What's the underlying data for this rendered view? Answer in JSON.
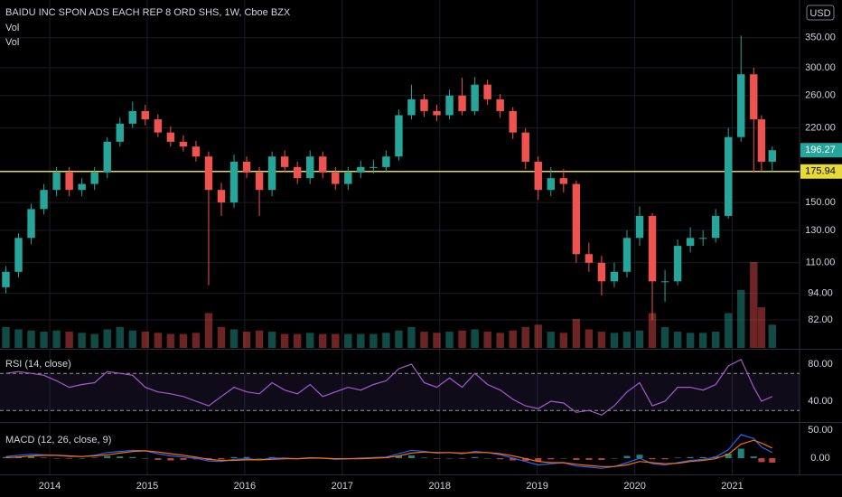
{
  "chart_data": [
    {
      "type": "candlestick",
      "title": "BAIDU INC SPON ADS EACH REP 8 ORD SHS, 1W, Cboe BZX",
      "indicators": [
        "Vol",
        "Vol"
      ],
      "currency": "USD",
      "log": true,
      "grid": true,
      "x": [
        2013.55,
        2013.68,
        2013.81,
        2013.94,
        2014.07,
        2014.2,
        2014.33,
        2014.46,
        2014.59,
        2014.72,
        2014.85,
        2014.98,
        2015.11,
        2015.24,
        2015.37,
        2015.5,
        2015.63,
        2015.76,
        2015.89,
        2016.02,
        2016.15,
        2016.28,
        2016.41,
        2016.54,
        2016.67,
        2016.8,
        2016.93,
        2017.06,
        2017.19,
        2017.32,
        2017.45,
        2017.58,
        2017.71,
        2017.84,
        2017.97,
        2018.1,
        2018.23,
        2018.36,
        2018.49,
        2018.62,
        2018.75,
        2018.88,
        2019.01,
        2019.14,
        2019.27,
        2019.4,
        2019.53,
        2019.66,
        2019.79,
        2019.92,
        2020.05,
        2020.18,
        2020.31,
        2020.44,
        2020.57,
        2020.7,
        2020.83,
        2020.96,
        2021.09,
        2021.22,
        2021.3,
        2021.41
      ],
      "open": [
        97,
        105,
        125,
        145,
        160,
        175,
        160,
        165,
        175,
        205,
        225,
        240,
        230,
        215,
        205,
        200,
        190,
        160,
        150,
        185,
        175,
        160,
        190,
        180,
        170,
        190,
        175,
        165,
        175,
        180,
        180,
        190,
        235,
        255,
        240,
        235,
        260,
        240,
        275,
        255,
        240,
        215,
        185,
        160,
        170,
        165,
        115,
        110,
        100,
        105,
        125,
        140,
        100,
        100,
        120,
        125,
        125,
        140,
        210,
        290,
        230,
        185
      ],
      "high": [
        108,
        128,
        149,
        165,
        180,
        180,
        170,
        180,
        210,
        232,
        252,
        248,
        236,
        222,
        212,
        206,
        195,
        166,
        192,
        190,
        180,
        195,
        196,
        185,
        196,
        195,
        180,
        180,
        186,
        187,
        196,
        242,
        275,
        262,
        248,
        268,
        285,
        286,
        282,
        262,
        245,
        220,
        190,
        180,
        178,
        168,
        122,
        114,
        110,
        130,
        147,
        142,
        106,
        124,
        132,
        130,
        145,
        220,
        354,
        300,
        235,
        200
      ],
      "low": [
        94,
        102,
        121,
        141,
        155,
        155,
        155,
        160,
        170,
        200,
        220,
        223,
        210,
        200,
        195,
        185,
        98,
        140,
        146,
        170,
        140,
        155,
        175,
        165,
        165,
        170,
        160,
        160,
        170,
        174,
        175,
        186,
        230,
        233,
        228,
        230,
        235,
        235,
        248,
        232,
        208,
        178,
        152,
        155,
        158,
        110,
        105,
        93,
        97,
        102,
        120,
        82,
        90,
        98,
        116,
        120,
        122,
        138,
        205,
        175,
        176,
        176
      ],
      "close": [
        105,
        125,
        145,
        160,
        175,
        160,
        165,
        175,
        205,
        225,
        240,
        230,
        215,
        205,
        200,
        190,
        160,
        150,
        185,
        175,
        160,
        190,
        180,
        170,
        190,
        175,
        165,
        175,
        180,
        180,
        190,
        235,
        255,
        240,
        235,
        260,
        240,
        275,
        255,
        240,
        215,
        185,
        160,
        170,
        165,
        115,
        110,
        100,
        105,
        125,
        140,
        100,
        100,
        120,
        125,
        125,
        140,
        210,
        290,
        230,
        185,
        196.27
      ],
      "volume": [
        18,
        16,
        15,
        14,
        15,
        14,
        13,
        12,
        16,
        18,
        15,
        14,
        13,
        12,
        12,
        13,
        30,
        18,
        16,
        14,
        15,
        14,
        12,
        12,
        13,
        12,
        12,
        12,
        12,
        12,
        13,
        15,
        18,
        14,
        13,
        14,
        15,
        16,
        14,
        13,
        15,
        18,
        20,
        14,
        13,
        25,
        16,
        14,
        13,
        14,
        15,
        30,
        18,
        14,
        13,
        13,
        14,
        30,
        50,
        74,
        35,
        20
      ],
      "volume_lim": [
        0,
        300
      ],
      "up_color": "#26a69a",
      "down_color": "#ef5350",
      "xlim": [
        2013.49,
        2021.69
      ],
      "xticks": [
        2014,
        2015,
        2016,
        2017,
        2018,
        2019,
        2020,
        2021
      ],
      "ylim": [
        71,
        425
      ],
      "yticks": [
        {
          "value": 82,
          "label": "82.00"
        },
        {
          "value": 94,
          "label": "94.00"
        },
        {
          "value": 110,
          "label": "110.00"
        },
        {
          "value": 130,
          "label": "130.00"
        },
        {
          "value": 150,
          "label": "150.00"
        },
        {
          "value": 220,
          "label": "220.00"
        },
        {
          "value": 260,
          "label": "260.00"
        },
        {
          "value": 300,
          "label": "300.00"
        },
        {
          "value": 350,
          "label": "350.00"
        }
      ],
      "hline": 175.94,
      "hline_color": "#e6d93a"
    },
    {
      "type": "line",
      "title": "RSI (14, close)",
      "color": "#a35bd0",
      "values": [
        70,
        72,
        70,
        68,
        62,
        55,
        58,
        60,
        72,
        70,
        68,
        55,
        50,
        48,
        45,
        40,
        35,
        45,
        55,
        50,
        48,
        60,
        52,
        48,
        58,
        45,
        50,
        55,
        52,
        58,
        62,
        75,
        80,
        60,
        55,
        65,
        55,
        70,
        58,
        52,
        42,
        35,
        32,
        40,
        38,
        28,
        30,
        25,
        35,
        50,
        60,
        35,
        40,
        55,
        55,
        52,
        58,
        78,
        85,
        55,
        40,
        45
      ],
      "ylim": [
        18.5,
        94.6
      ],
      "yticks": [
        {
          "value": 40,
          "label": "40.00"
        },
        {
          "value": 80,
          "label": "80.00"
        }
      ],
      "bands": [
        30,
        70
      ]
    },
    {
      "type": "macd",
      "title": "MACD (12, 26, close, 9)",
      "macd_color": "#2962ff",
      "signal_color": "#ff6d00",
      "macd": [
        3,
        5,
        7,
        6,
        5,
        3,
        3,
        5,
        10,
        12,
        14,
        13,
        8,
        4,
        2,
        0,
        -5,
        -6,
        -2,
        -1,
        -3,
        0,
        0,
        -1,
        1,
        0,
        -2,
        -1,
        0,
        1,
        2,
        8,
        14,
        12,
        9,
        10,
        8,
        12,
        10,
        6,
        0,
        -6,
        -12,
        -10,
        -8,
        -14,
        -16,
        -18,
        -15,
        -8,
        0,
        -10,
        -12,
        -8,
        -4,
        -2,
        2,
        15,
        42,
        35,
        20,
        10
      ],
      "signal": [
        1,
        2,
        4,
        5,
        5,
        4,
        3,
        4,
        6,
        9,
        12,
        13,
        11,
        8,
        5,
        2,
        -2,
        -4,
        -4,
        -3,
        -3,
        -2,
        -1,
        -1,
        0,
        0,
        -1,
        -1,
        -1,
        0,
        1,
        4,
        9,
        11,
        10,
        10,
        9,
        10,
        10,
        8,
        4,
        -1,
        -6,
        -8,
        -8,
        -11,
        -13,
        -15,
        -15,
        -12,
        -6,
        -8,
        -10,
        -9,
        -6,
        -4,
        -1,
        7,
        25,
        32,
        27,
        18
      ],
      "histogram": [
        2,
        3,
        3,
        1,
        0,
        -1,
        0,
        1,
        4,
        3,
        2,
        0,
        -3,
        -4,
        -3,
        -2,
        -3,
        -2,
        2,
        2,
        0,
        2,
        1,
        0,
        1,
        0,
        -1,
        0,
        1,
        1,
        1,
        4,
        5,
        1,
        -1,
        0,
        -1,
        2,
        0,
        -2,
        -4,
        -5,
        -6,
        -2,
        0,
        -3,
        -3,
        -3,
        0,
        4,
        6,
        -2,
        -2,
        1,
        2,
        2,
        3,
        8,
        17,
        3,
        -7,
        -8
      ],
      "ylim": [
        -29,
        62.9
      ],
      "yticks": [
        {
          "value": 0,
          "label": "0.00"
        },
        {
          "value": 50,
          "label": "50.00"
        }
      ]
    }
  ]
}
